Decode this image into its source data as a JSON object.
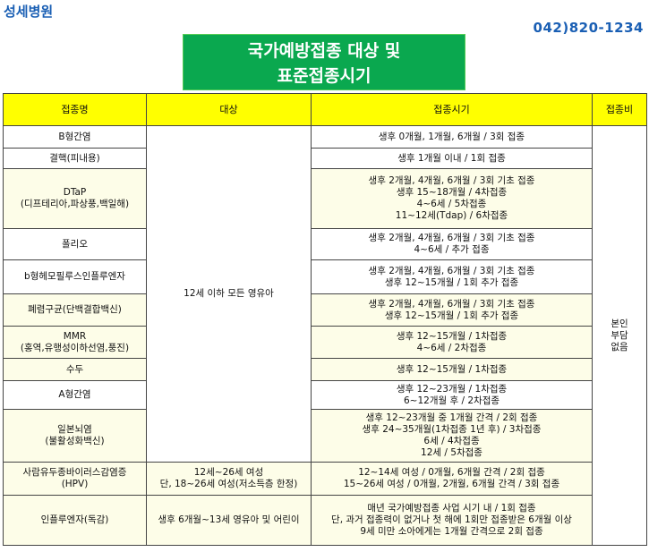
{
  "header": {
    "hospital": "성세병원",
    "phone": "042)820-1234"
  },
  "title": {
    "line1": "국가예방접종 대상 및",
    "line2": "표준접종시기"
  },
  "columns": [
    "접종명",
    "대상",
    "접종시기",
    "접종비"
  ],
  "target_common": "12세 이하 모든 영유아",
  "fee_lines": [
    "본인",
    "부담",
    "없음"
  ],
  "rows": [
    {
      "name": [
        "B형간염"
      ],
      "schedule": [
        "생후 0개월, 1개월, 6개월 / 3회 접종"
      ]
    },
    {
      "name": [
        "결핵(피내용)"
      ],
      "schedule": [
        "생후 1개월 이내 / 1회 접종"
      ]
    },
    {
      "name": [
        "DTaP",
        "(디프테리아,파상풍,백일해)"
      ],
      "schedule": [
        "생후 2개월, 4개월, 6개월 / 3회 기초 접종",
        "생후 15~18개월 / 4차접종",
        "4~6세 / 5차접종",
        "11~12세(Tdap) / 6차접종"
      ]
    },
    {
      "name": [
        "폴리오"
      ],
      "schedule": [
        "생후 2개월, 4개월, 6개월 / 3회 기초 접종",
        "4~6세 / 추가 접종"
      ]
    },
    {
      "name": [
        "b형헤모필루스인플루엔자"
      ],
      "schedule": [
        "생후 2개월, 4개월, 6개월 / 3회 기초 접종",
        "생후 12~15개월 / 1회 추가 접종"
      ]
    },
    {
      "name": [
        "폐렴구균(단백결합백신)"
      ],
      "schedule": [
        "생후 2개월, 4개월, 6개월 / 3회 기초 접종",
        "생후 12~15개월 / 1회 추가 접종"
      ]
    },
    {
      "name": [
        "MMR",
        "(홍역,유행성이하선염,풍진)"
      ],
      "schedule": [
        "생후 12~15개월 / 1차접종",
        "4~6세 / 2차접종"
      ]
    },
    {
      "name": [
        "수두"
      ],
      "schedule": [
        "생후 12~15개월 / 1차접종"
      ]
    },
    {
      "name": [
        "A형간염"
      ],
      "schedule": [
        "생후 12~23개월 / 1차접종",
        "6~12개월 후 / 2차접종"
      ]
    },
    {
      "name": [
        "일본뇌염",
        "(불활성화백신)"
      ],
      "schedule": [
        "생후 12~23개월 중 1개월 간격 / 2회 접종",
        "생후 24~35개월(1차접종 1년 후) / 3차접종",
        "6세 / 4차접종",
        "12세 / 5차접종"
      ]
    },
    {
      "name": [
        "사람유두종바이러스감염증",
        "(HPV)"
      ],
      "target": [
        "12세~26세 여성",
        "단, 18~26세 여성(저소득층 한정)"
      ],
      "schedule": [
        "12~14세 여성 / 0개월, 6개월 간격 / 2회 접종",
        "15~26세 여성 / 0개월, 2개월, 6개월 간격 / 3회 접종"
      ]
    },
    {
      "name": [
        "인플루엔자(독감)"
      ],
      "target": [
        "생후 6개월~13세 영유아 및 어린이"
      ],
      "schedule": [
        "매년 국가예방접종 사업 시기 내 / 1회 접종",
        "단, 과거 접종력이 없거나 첫 해에 1회만 접종받은 6개월 이상",
        "9세 미만 소아에게는 1개월 간격으로 2회 접종"
      ]
    }
  ],
  "colors": {
    "title_bg": "#0aa84f",
    "header_bg": "#ffff00",
    "brand_blue": "#1a5fb4",
    "row_tint": "#fdfde8"
  }
}
